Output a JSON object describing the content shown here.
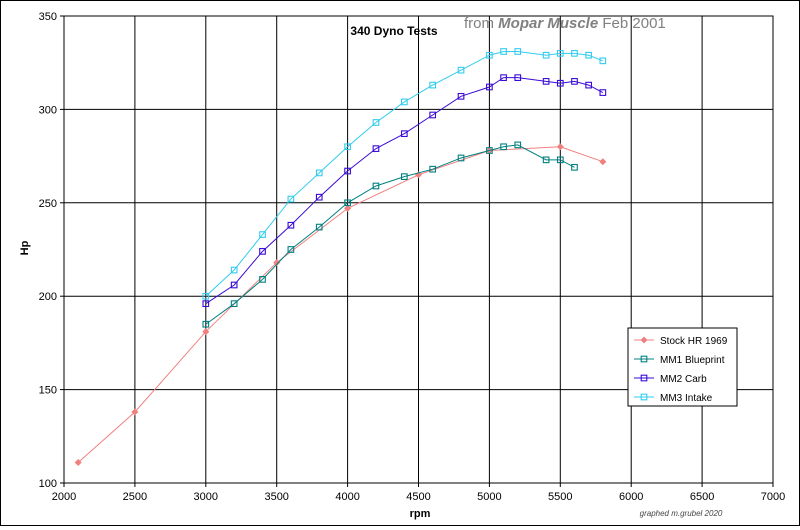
{
  "chart_data": {
    "type": "line",
    "title": "340 Dyno Tests",
    "subtitle_parts": {
      "from": "from ",
      "source": "Mopar Muscle",
      "date": " Feb 2001"
    },
    "xlabel": "rpm",
    "ylabel": "Hp",
    "xlim": [
      2000,
      7000
    ],
    "ylim": [
      100,
      350
    ],
    "xticks": [
      2000,
      2500,
      3000,
      3500,
      4000,
      4500,
      5000,
      5500,
      6000,
      6500,
      7000
    ],
    "yticks": [
      100,
      150,
      200,
      250,
      300,
      350
    ],
    "grid": true,
    "legend_position": "right",
    "credit": "graphed m.grubel 2020",
    "series": [
      {
        "name": "Stock HR 1969",
        "color": "#f08080",
        "marker": "diamond",
        "x": [
          2100,
          2500,
          3000,
          3500,
          4000,
          4500,
          5000,
          5500,
          5800
        ],
        "y": [
          111,
          138,
          181,
          218,
          247,
          265,
          278,
          280,
          272
        ]
      },
      {
        "name": "MM1 Blueprint",
        "color": "#008080",
        "marker": "square",
        "x": [
          3000,
          3200,
          3400,
          3600,
          3800,
          4000,
          4200,
          4400,
          4600,
          4800,
          5000,
          5100,
          5200,
          5400,
          5500,
          5600
        ],
        "y": [
          185,
          196,
          209,
          225,
          237,
          250,
          259,
          264,
          268,
          274,
          278,
          280,
          281,
          273,
          273,
          269
        ]
      },
      {
        "name": "MM2 Carb",
        "color": "#3a0ad6",
        "marker": "square",
        "x": [
          3000,
          3200,
          3400,
          3600,
          3800,
          4000,
          4200,
          4400,
          4600,
          4800,
          5000,
          5100,
          5200,
          5400,
          5500,
          5600,
          5700,
          5800
        ],
        "y": [
          196,
          206,
          224,
          238,
          253,
          267,
          279,
          287,
          297,
          307,
          312,
          317,
          317,
          315,
          314,
          315,
          313,
          309
        ]
      },
      {
        "name": "MM3 Intake",
        "color": "#33ccee",
        "marker": "square",
        "x": [
          3000,
          3200,
          3400,
          3600,
          3800,
          4000,
          4200,
          4400,
          4600,
          4800,
          5000,
          5100,
          5200,
          5400,
          5500,
          5600,
          5700,
          5800
        ],
        "y": [
          200,
          214,
          233,
          252,
          266,
          280,
          293,
          304,
          313,
          321,
          329,
          331,
          331,
          329,
          330,
          330,
          329,
          326
        ]
      }
    ]
  }
}
